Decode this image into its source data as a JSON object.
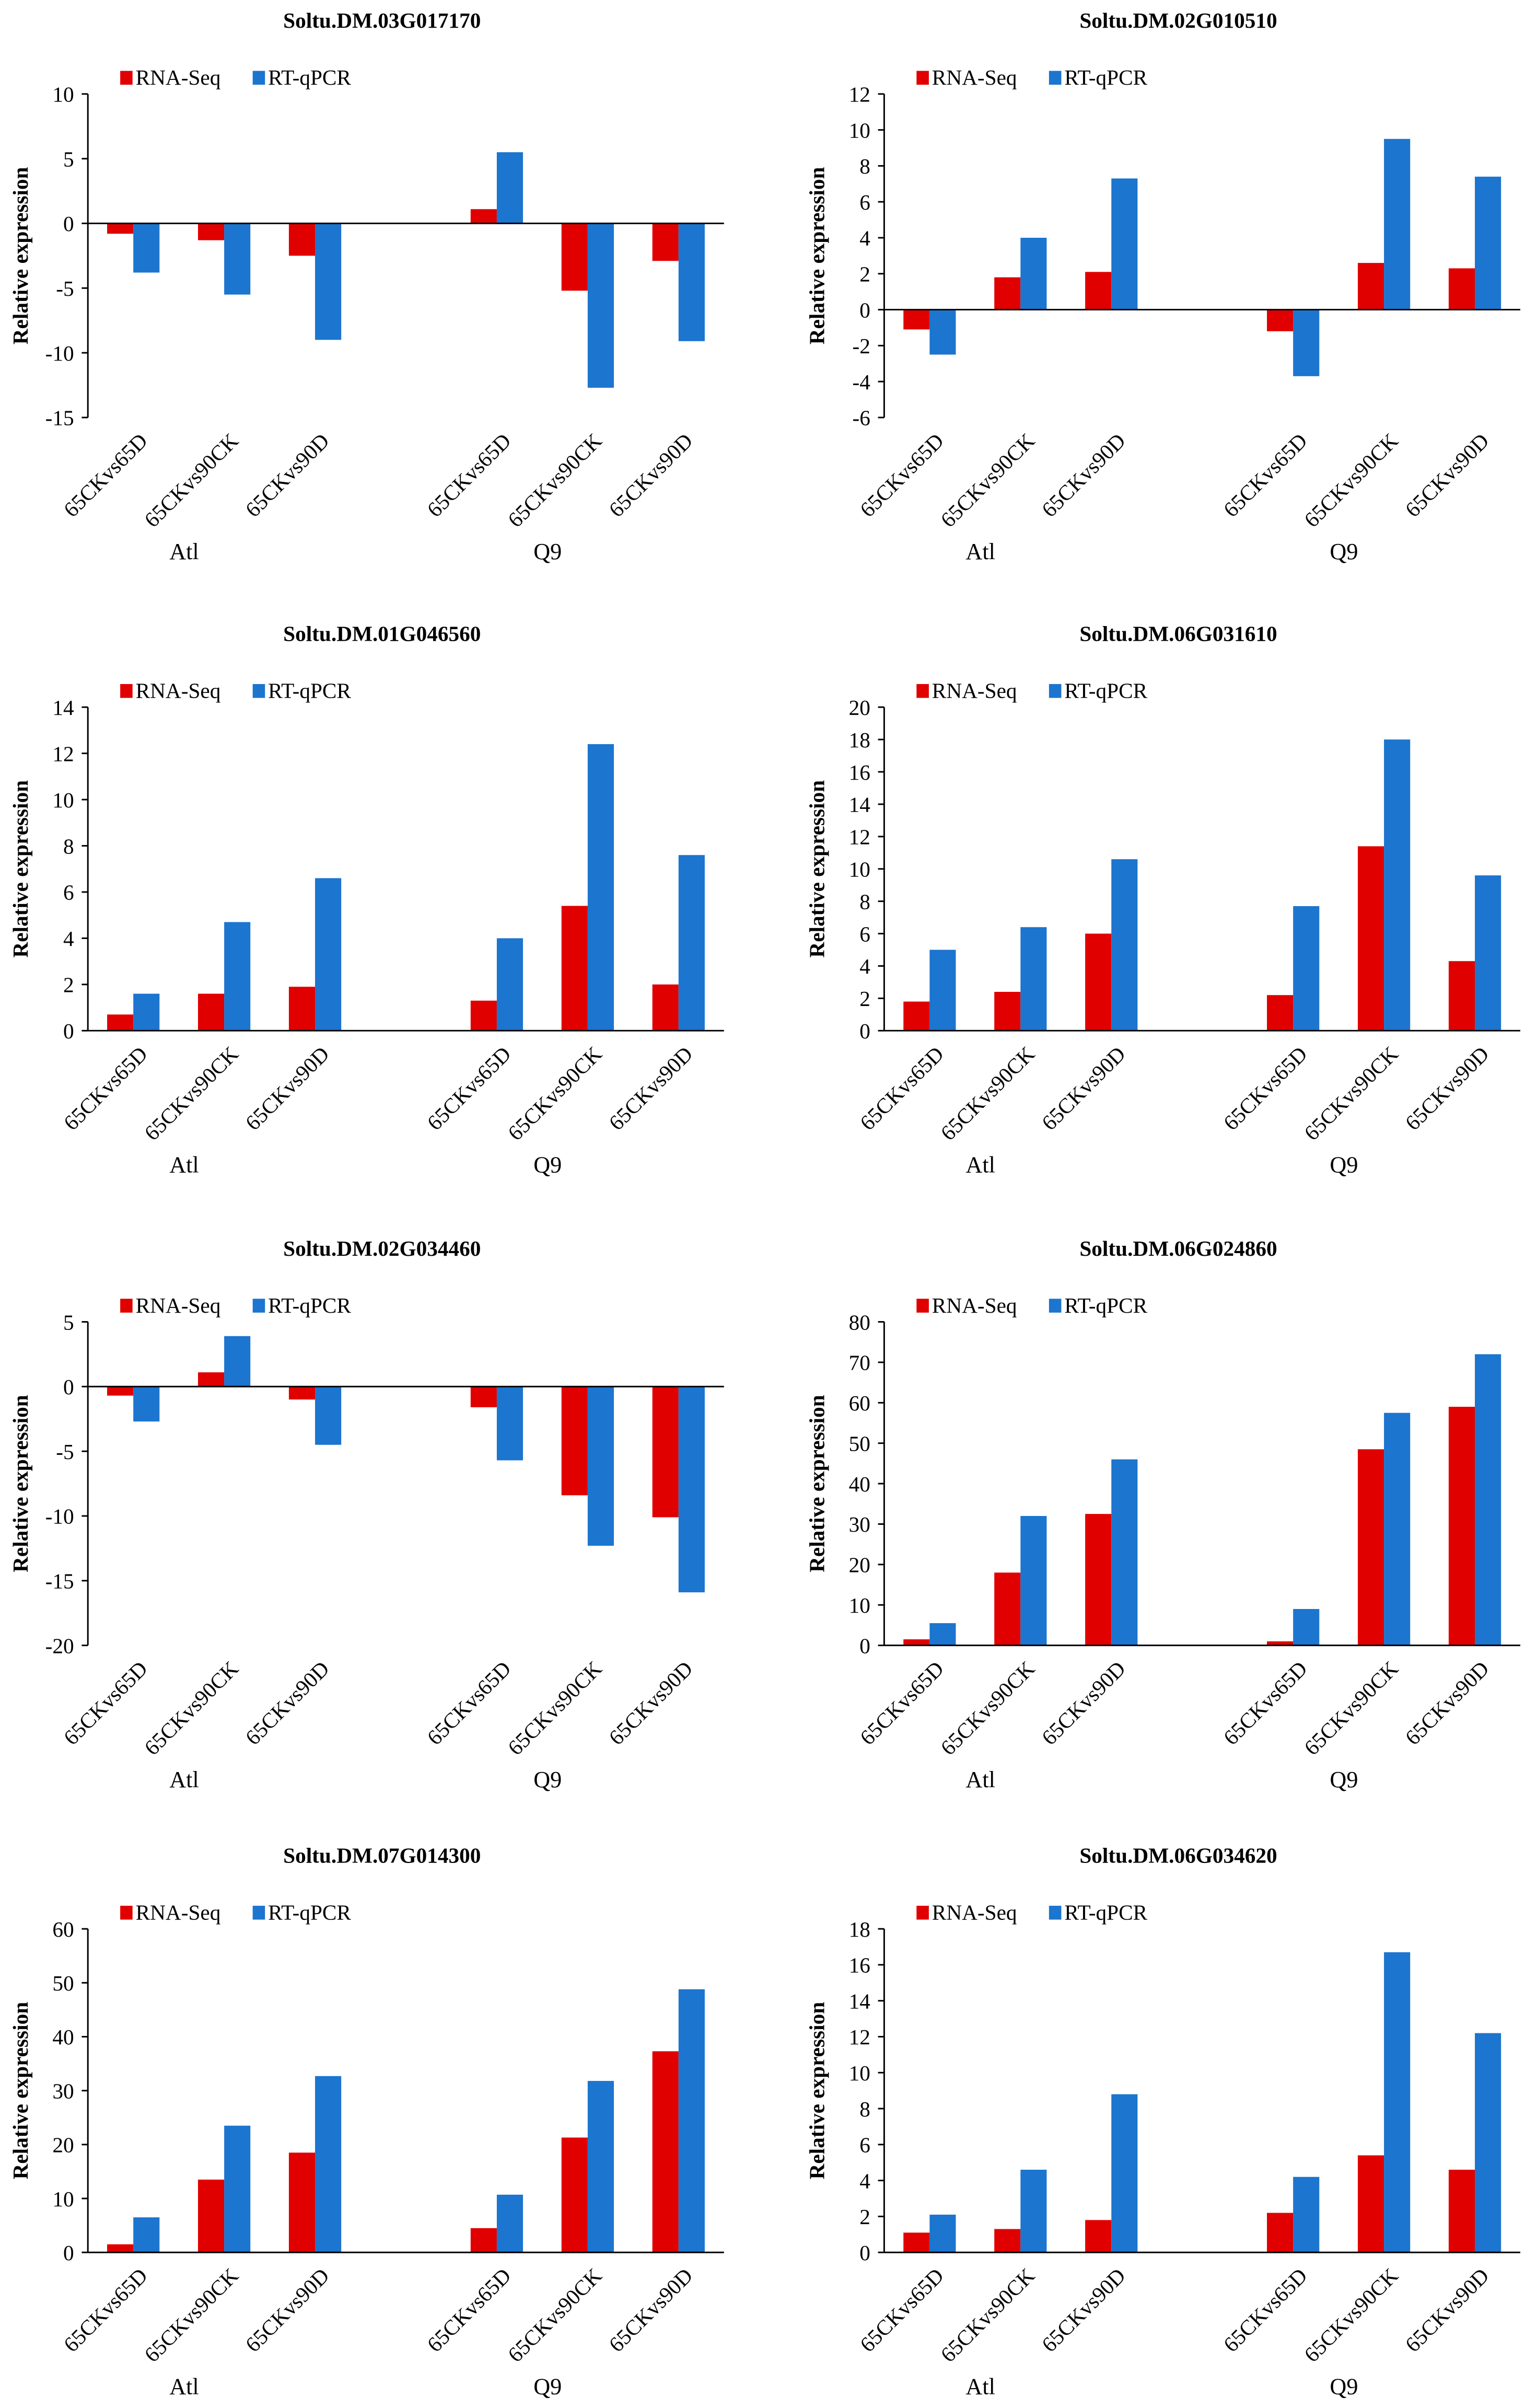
{
  "chart_data": [
    {
      "type": "bar",
      "title": "Soltu.DM.03G017170",
      "y_label": "Relative expression",
      "categories": [
        "65CKvs65D",
        "65CKvs90CK",
        "65CKvs90D",
        "65CKvs65D",
        "65CKvs90CK",
        "65CKvs90D"
      ],
      "groups": [
        "Atl",
        "Q9"
      ],
      "series": [
        {
          "name": "RNA-Seq",
          "color": "#e00000",
          "values": [
            -0.8,
            -1.3,
            -2.5,
            1.1,
            -5.2,
            -2.9
          ]
        },
        {
          "name": "RT-qPCR",
          "color": "#1c75cf",
          "values": [
            -3.8,
            -5.5,
            -9.0,
            5.5,
            -12.7,
            -9.1
          ]
        }
      ],
      "ylim": [
        -15,
        10
      ],
      "yticks": [
        -15,
        -10,
        -5,
        0,
        5,
        10
      ]
    },
    {
      "type": "bar",
      "title": "Soltu.DM.02G010510",
      "y_label": "Relative expression",
      "categories": [
        "65CKvs65D",
        "65CKvs90CK",
        "65CKvs90D",
        "65CKvs65D",
        "65CKvs90CK",
        "65CKvs90D"
      ],
      "groups": [
        "Atl",
        "Q9"
      ],
      "series": [
        {
          "name": "RNA-Seq",
          "color": "#e00000",
          "values": [
            -1.1,
            1.8,
            2.1,
            -1.2,
            2.6,
            2.3
          ]
        },
        {
          "name": "RT-qPCR",
          "color": "#1c75cf",
          "values": [
            -2.5,
            4.0,
            7.3,
            -3.7,
            9.5,
            7.4
          ]
        }
      ],
      "ylim": [
        -6,
        12
      ],
      "yticks": [
        -6,
        -4,
        -2,
        0,
        2,
        4,
        6,
        8,
        10,
        12
      ]
    },
    {
      "type": "bar",
      "title": "Soltu.DM.01G046560",
      "y_label": "Relative expression",
      "categories": [
        "65CKvs65D",
        "65CKvs90CK",
        "65CKvs90D",
        "65CKvs65D",
        "65CKvs90CK",
        "65CKvs90D"
      ],
      "groups": [
        "Atl",
        "Q9"
      ],
      "series": [
        {
          "name": "RNA-Seq",
          "color": "#e00000",
          "values": [
            0.7,
            1.6,
            1.9,
            1.3,
            5.4,
            2.0
          ]
        },
        {
          "name": "RT-qPCR",
          "color": "#1c75cf",
          "values": [
            1.6,
            4.7,
            6.6,
            4.0,
            12.4,
            7.6
          ]
        }
      ],
      "ylim": [
        0,
        14
      ],
      "yticks": [
        0,
        2,
        4,
        6,
        8,
        10,
        12,
        14
      ]
    },
    {
      "type": "bar",
      "title": "Soltu.DM.06G031610",
      "y_label": "Relative expression",
      "categories": [
        "65CKvs65D",
        "65CKvs90CK",
        "65CKvs90D",
        "65CKvs65D",
        "65CKvs90CK",
        "65CKvs90D"
      ],
      "groups": [
        "Atl",
        "Q9"
      ],
      "series": [
        {
          "name": "RNA-Seq",
          "color": "#e00000",
          "values": [
            1.8,
            2.4,
            6.0,
            2.2,
            11.4,
            4.3
          ]
        },
        {
          "name": "RT-qPCR",
          "color": "#1c75cf",
          "values": [
            5.0,
            6.4,
            10.6,
            7.7,
            18.0,
            9.6
          ]
        }
      ],
      "ylim": [
        0,
        20
      ],
      "yticks": [
        0,
        2,
        4,
        6,
        8,
        10,
        12,
        14,
        16,
        18,
        20
      ]
    },
    {
      "type": "bar",
      "title": "Soltu.DM.02G034460",
      "y_label": "Relative expression",
      "categories": [
        "65CKvs65D",
        "65CKvs90CK",
        "65CKvs90D",
        "65CKvs65D",
        "65CKvs90CK",
        "65CKvs90D"
      ],
      "groups": [
        "Atl",
        "Q9"
      ],
      "series": [
        {
          "name": "RNA-Seq",
          "color": "#e00000",
          "values": [
            -0.7,
            1.1,
            -1.0,
            -1.6,
            -8.4,
            -10.1
          ]
        },
        {
          "name": "RT-qPCR",
          "color": "#1c75cf",
          "values": [
            -2.7,
            3.9,
            -4.5,
            -5.7,
            -12.3,
            -15.9
          ]
        }
      ],
      "ylim": [
        -20,
        5
      ],
      "yticks": [
        -20,
        -15,
        -10,
        -5,
        0,
        5
      ]
    },
    {
      "type": "bar",
      "title": "Soltu.DM.06G024860",
      "y_label": "Relative expression",
      "categories": [
        "65CKvs65D",
        "65CKvs90CK",
        "65CKvs90D",
        "65CKvs65D",
        "65CKvs90CK",
        "65CKvs90D"
      ],
      "groups": [
        "Atl",
        "Q9"
      ],
      "series": [
        {
          "name": "RNA-Seq",
          "color": "#e00000",
          "values": [
            1.5,
            18,
            32.5,
            1,
            48.5,
            59
          ]
        },
        {
          "name": "RT-qPCR",
          "color": "#1c75cf",
          "values": [
            5.5,
            32,
            46,
            9,
            57.5,
            72
          ]
        }
      ],
      "ylim": [
        0,
        80
      ],
      "yticks": [
        0,
        10,
        20,
        30,
        40,
        50,
        60,
        70,
        80
      ]
    },
    {
      "type": "bar",
      "title": "Soltu.DM.07G014300",
      "y_label": "Relative expression",
      "categories": [
        "65CKvs65D",
        "65CKvs90CK",
        "65CKvs90D",
        "65CKvs65D",
        "65CKvs90CK",
        "65CKvs90D"
      ],
      "groups": [
        "Atl",
        "Q9"
      ],
      "series": [
        {
          "name": "RNA-Seq",
          "color": "#e00000",
          "values": [
            1.5,
            13.5,
            18.5,
            4.5,
            21.3,
            37.3
          ]
        },
        {
          "name": "RT-qPCR",
          "color": "#1c75cf",
          "values": [
            6.5,
            23.5,
            32.7,
            10.7,
            31.8,
            48.8
          ]
        }
      ],
      "ylim": [
        0,
        60
      ],
      "yticks": [
        0,
        10,
        20,
        30,
        40,
        50,
        60
      ]
    },
    {
      "type": "bar",
      "title": "Soltu.DM.06G034620",
      "y_label": "Relative expression",
      "categories": [
        "65CKvs65D",
        "65CKvs90CK",
        "65CKvs90D",
        "65CKvs65D",
        "65CKvs90CK",
        "65CKvs90D"
      ],
      "groups": [
        "Atl",
        "Q9"
      ],
      "series": [
        {
          "name": "RNA-Seq",
          "color": "#e00000",
          "values": [
            1.1,
            1.3,
            1.8,
            2.2,
            5.4,
            4.6
          ]
        },
        {
          "name": "RT-qPCR",
          "color": "#1c75cf",
          "values": [
            2.1,
            4.6,
            8.8,
            4.2,
            16.7,
            12.2
          ]
        }
      ],
      "ylim": [
        0,
        18
      ],
      "yticks": [
        0,
        2,
        4,
        6,
        8,
        10,
        12,
        14,
        16,
        18
      ]
    }
  ]
}
